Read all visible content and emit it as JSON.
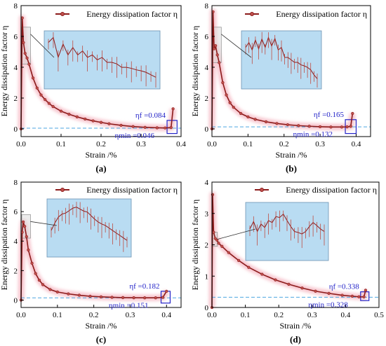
{
  "colors": {
    "series": "#8b1a1a",
    "marker": "#c0504d",
    "glow": "#f7c6cf",
    "inset_bg": "#b9dcf2",
    "inset_border": "#6d93b3",
    "annotation": "#2323c8",
    "dashed": "#4da6e0",
    "gray_box": "#9a9a9a"
  },
  "figure": {
    "legend_text": "Energy dissipation factor η"
  },
  "chart_data": [
    {
      "type": "line",
      "panel_label": "(a)",
      "xlabel": "Strain /%",
      "ylabel": "Energy dissipation factor η",
      "xlim": [
        0,
        0.4
      ],
      "ylim": [
        -0.5,
        8
      ],
      "xticks": [
        "0.0",
        "0.1",
        "0.2",
        "0.3",
        "0.4"
      ],
      "xtick_values": [
        0,
        0.1,
        0.2,
        0.3,
        0.4
      ],
      "yticks": [
        "0",
        "2",
        "4",
        "6",
        "8"
      ],
      "ytick_values": [
        0,
        2,
        4,
        6,
        8
      ],
      "series": [
        {
          "name": "Energy dissipation factor η",
          "x": [
            0.0,
            0.003,
            0.006,
            0.01,
            0.015,
            0.02,
            0.03,
            0.04,
            0.05,
            0.06,
            0.07,
            0.08,
            0.1,
            0.12,
            0.14,
            0.16,
            0.18,
            0.2,
            0.22,
            0.25,
            0.28,
            0.31,
            0.34,
            0.36,
            0.375,
            0.38
          ],
          "y": [
            0.0,
            7.2,
            5.6,
            4.9,
            4.6,
            4.2,
            3.3,
            2.65,
            2.2,
            1.9,
            1.65,
            1.45,
            1.15,
            0.95,
            0.78,
            0.64,
            0.52,
            0.42,
            0.33,
            0.23,
            0.15,
            0.1,
            0.07,
            0.06,
            0.084,
            1.3
          ]
        }
      ],
      "annotations": {
        "eta_f": "ηf =0.084",
        "eta_min": "ηmin =0.046"
      },
      "min_value": 0.046,
      "inset_box_x": [
        0.0,
        0.022
      ],
      "inset_box_y": [
        4.2,
        6.6
      ],
      "end_box_x": [
        0.365,
        0.39
      ],
      "end_box_y": [
        -0.3,
        0.55
      ]
    },
    {
      "type": "line",
      "panel_label": "(b)",
      "xlabel": "Strain /%",
      "ylabel": "Energy dissipation factor η",
      "xlim": [
        0,
        0.44
      ],
      "ylim": [
        -0.5,
        8
      ],
      "xticks": [
        "0.0",
        "0.1",
        "0.2",
        "0.3",
        "0.4"
      ],
      "xtick_values": [
        0,
        0.1,
        0.2,
        0.3,
        0.4
      ],
      "yticks": [
        "0",
        "2",
        "4",
        "6",
        "8"
      ],
      "ytick_values": [
        0,
        2,
        4,
        6,
        8
      ],
      "series": [
        {
          "name": "Energy dissipation factor η",
          "x": [
            0.0,
            0.003,
            0.006,
            0.01,
            0.015,
            0.02,
            0.03,
            0.04,
            0.05,
            0.06,
            0.08,
            0.1,
            0.12,
            0.15,
            0.18,
            0.21,
            0.24,
            0.27,
            0.3,
            0.33,
            0.36,
            0.375,
            0.385,
            0.39
          ],
          "y": [
            0.0,
            7.6,
            5.2,
            5.4,
            4.8,
            4.3,
            3.0,
            2.2,
            1.7,
            1.4,
            1.0,
            0.78,
            0.62,
            0.46,
            0.35,
            0.27,
            0.21,
            0.17,
            0.14,
            0.12,
            0.12,
            0.13,
            0.165,
            1.0
          ]
        }
      ],
      "annotations": {
        "eta_f": "ηf =0.165",
        "eta_min": "ηmin =0.132"
      },
      "min_value": 0.132,
      "inset_box_x": [
        0.0,
        0.024
      ],
      "inset_box_y": [
        4.3,
        6.6
      ],
      "end_box_x": [
        0.37,
        0.4
      ],
      "end_box_y": [
        -0.3,
        0.6
      ]
    },
    {
      "type": "line",
      "panel_label": "(c)",
      "xlabel": "Strain /%",
      "ylabel": "Energy dissipation factor η",
      "xlim": [
        0,
        0.44
      ],
      "ylim": [
        -0.5,
        8
      ],
      "xticks": [
        "0.0",
        "0.1",
        "0.2",
        "0.3",
        "0.4"
      ],
      "xtick_values": [
        0,
        0.1,
        0.2,
        0.3,
        0.4
      ],
      "yticks": [
        "0",
        "2",
        "4",
        "6",
        "8"
      ],
      "ytick_values": [
        0,
        2,
        4,
        6,
        8
      ],
      "series": [
        {
          "name": "Energy dissipation factor η",
          "x": [
            0.0,
            0.003,
            0.006,
            0.01,
            0.015,
            0.02,
            0.03,
            0.04,
            0.05,
            0.06,
            0.08,
            0.1,
            0.13,
            0.16,
            0.19,
            0.22,
            0.25,
            0.28,
            0.31,
            0.34,
            0.37,
            0.39,
            0.4
          ],
          "y": [
            0.0,
            4.6,
            5.3,
            5.0,
            4.3,
            3.4,
            2.5,
            1.8,
            1.35,
            1.05,
            0.72,
            0.55,
            0.42,
            0.33,
            0.26,
            0.22,
            0.19,
            0.17,
            0.16,
            0.155,
            0.155,
            0.182,
            0.6
          ]
        }
      ],
      "annotations": {
        "eta_f": "ηf =0.182",
        "eta_min": "ηmin =0.151"
      },
      "min_value": 0.151,
      "inset_box_x": [
        0.0,
        0.024
      ],
      "inset_box_y": [
        4.2,
        5.8
      ],
      "end_box_x": [
        0.385,
        0.41
      ],
      "end_box_y": [
        -0.2,
        0.6
      ]
    },
    {
      "type": "line",
      "panel_label": "(d)",
      "xlabel": "Strain /%",
      "ylabel": "Energy dissipation factor η",
      "xlim": [
        0,
        0.5
      ],
      "ylim": [
        0,
        4
      ],
      "xticks": [
        "0.0",
        "0.1",
        "0.2",
        "0.3",
        "0.4",
        "0.5"
      ],
      "xtick_values": [
        0,
        0.1,
        0.2,
        0.3,
        0.4,
        0.5
      ],
      "yticks": [
        "0",
        "1",
        "2",
        "3",
        "4"
      ],
      "ytick_values": [
        0,
        1,
        2,
        3,
        4
      ],
      "series": [
        {
          "name": "Energy dissipation factor η",
          "x": [
            0.0,
            0.002,
            0.005,
            0.01,
            0.015,
            0.02,
            0.03,
            0.05,
            0.08,
            0.11,
            0.15,
            0.19,
            0.23,
            0.27,
            0.31,
            0.35,
            0.39,
            0.42,
            0.44,
            0.455,
            0.46
          ],
          "y": [
            0.0,
            3.6,
            2.4,
            2.2,
            2.15,
            2.05,
            1.95,
            1.75,
            1.5,
            1.28,
            1.06,
            0.88,
            0.74,
            0.62,
            0.52,
            0.45,
            0.39,
            0.36,
            0.34,
            0.338,
            0.55
          ]
        }
      ],
      "annotations": {
        "eta_f": "ηf =0.338",
        "eta_min": "ηmin =0.328"
      },
      "min_value": 0.328,
      "inset_box_x": [
        0.0,
        0.014
      ],
      "inset_box_y": [
        1.95,
        2.4
      ],
      "end_box_x": [
        0.445,
        0.47
      ],
      "end_box_y": [
        0.22,
        0.5
      ]
    }
  ]
}
